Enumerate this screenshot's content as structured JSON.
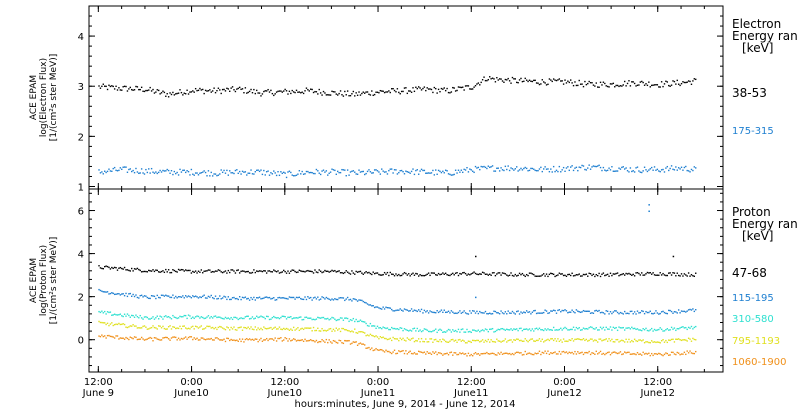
{
  "chart_data": [
    {
      "type": "scatter",
      "ylabel_lines": [
        "ACE EPAM",
        "log(Electron Flux)",
        "[1/(cm²s ster MeV)]"
      ],
      "ylim": [
        0.95,
        4.6
      ],
      "yticks": [
        1,
        2,
        3,
        4
      ],
      "legend_title_lines": [
        "Electron",
        "Energy ran",
        "[keV]"
      ],
      "series": [
        {
          "name": "38-53",
          "color": "#000000",
          "x": [
            0.0,
            0.12,
            0.25,
            0.37,
            0.5,
            0.62,
            0.75,
            0.87,
            1.0,
            1.12,
            1.25,
            1.37,
            1.5,
            1.62,
            1.75,
            1.87,
            2.0,
            2.08,
            2.12,
            2.25,
            2.37,
            2.5,
            2.62,
            2.75,
            2.87,
            3.0,
            3.12,
            3.2
          ],
          "y": [
            3.0,
            2.97,
            2.95,
            2.85,
            2.93,
            2.92,
            2.95,
            2.88,
            2.9,
            2.92,
            2.88,
            2.85,
            2.9,
            2.92,
            2.95,
            2.92,
            3.0,
            3.18,
            3.15,
            3.12,
            3.1,
            3.1,
            3.05,
            3.05,
            3.08,
            3.05,
            3.08,
            3.12
          ]
        },
        {
          "name": "175-315",
          "color": "#1e7fd0",
          "x": [
            0.0,
            0.12,
            0.25,
            0.37,
            0.5,
            0.62,
            0.75,
            0.87,
            1.0,
            1.12,
            1.25,
            1.37,
            1.5,
            1.62,
            1.75,
            1.87,
            2.0,
            2.12,
            2.25,
            2.37,
            2.5,
            2.62,
            2.75,
            2.87,
            3.0,
            3.12,
            3.2
          ],
          "y": [
            1.3,
            1.35,
            1.32,
            1.3,
            1.3,
            1.28,
            1.3,
            1.3,
            1.25,
            1.3,
            1.3,
            1.28,
            1.3,
            1.32,
            1.3,
            1.28,
            1.35,
            1.38,
            1.38,
            1.35,
            1.37,
            1.4,
            1.38,
            1.35,
            1.35,
            1.38,
            1.35
          ]
        }
      ]
    },
    {
      "type": "scatter",
      "ylabel_lines": [
        "ACE EPAM",
        "log(Proton Flux)",
        "[1/(cm²s ster MeV)]"
      ],
      "ylim": [
        -1.5,
        7.0
      ],
      "yticks": [
        0,
        2,
        4,
        6
      ],
      "legend_title_lines": [
        "Proton",
        "Energy ran",
        "[keV]"
      ],
      "series": [
        {
          "name": "47-68",
          "color": "#000000",
          "x": [
            0.0,
            0.25,
            0.5,
            0.75,
            1.0,
            1.25,
            1.5,
            1.75,
            2.0,
            2.25,
            2.5,
            2.75,
            3.0,
            3.2
          ],
          "y": [
            3.4,
            3.25,
            3.2,
            3.2,
            3.2,
            3.2,
            3.1,
            3.05,
            3.1,
            3.05,
            3.05,
            3.05,
            3.1,
            3.05
          ]
        },
        {
          "name": "115-195",
          "color": "#1e7fd0",
          "x": [
            0.0,
            0.25,
            0.5,
            0.75,
            1.0,
            1.25,
            1.37,
            1.5,
            1.75,
            2.0,
            2.25,
            2.5,
            2.75,
            3.0,
            3.2
          ],
          "y": [
            2.3,
            2.0,
            2.05,
            1.95,
            1.95,
            1.95,
            1.9,
            1.5,
            1.35,
            1.3,
            1.3,
            1.35,
            1.3,
            1.3,
            1.4
          ]
        },
        {
          "name": "310-580",
          "color": "#2ee0d0",
          "x": [
            0.0,
            0.25,
            0.5,
            0.75,
            1.0,
            1.25,
            1.37,
            1.5,
            1.75,
            2.0,
            2.25,
            2.5,
            2.75,
            3.0,
            3.2
          ],
          "y": [
            1.3,
            1.05,
            1.1,
            1.05,
            1.05,
            1.0,
            0.95,
            0.6,
            0.45,
            0.45,
            0.5,
            0.55,
            0.55,
            0.5,
            0.6
          ]
        },
        {
          "name": "795-1193",
          "color": "#e0e020",
          "x": [
            0.0,
            0.25,
            0.5,
            0.75,
            1.0,
            1.25,
            1.37,
            1.5,
            1.75,
            2.0,
            2.25,
            2.5,
            2.75,
            3.0,
            3.2
          ],
          "y": [
            0.8,
            0.6,
            0.6,
            0.55,
            0.55,
            0.5,
            0.45,
            0.1,
            0.0,
            -0.05,
            0.0,
            0.0,
            0.0,
            -0.05,
            0.05
          ]
        },
        {
          "name": "1060-1900",
          "color": "#f0901a",
          "x": [
            0.0,
            0.25,
            0.5,
            0.75,
            1.0,
            1.25,
            1.37,
            1.5,
            1.75,
            2.0,
            2.25,
            2.5,
            2.75,
            3.0,
            3.2
          ],
          "y": [
            0.2,
            0.05,
            0.1,
            0.0,
            0.05,
            -0.05,
            -0.1,
            -0.5,
            -0.6,
            -0.65,
            -0.6,
            -0.55,
            -0.6,
            -0.65,
            -0.55
          ]
        }
      ]
    }
  ],
  "x_axis": {
    "xlim": [
      -0.05,
      3.35
    ],
    "major_ticks": [
      {
        "x": 0.0,
        "top": "12:00",
        "bottom": "June 9"
      },
      {
        "x": 0.5,
        "top": "0:00",
        "bottom": "June10"
      },
      {
        "x": 1.0,
        "top": "12:00",
        "bottom": "June10"
      },
      {
        "x": 1.5,
        "top": "0:00",
        "bottom": "June11"
      },
      {
        "x": 2.0,
        "top": "12:00",
        "bottom": "June11"
      },
      {
        "x": 2.5,
        "top": "0:00",
        "bottom": "June12"
      },
      {
        "x": 3.0,
        "top": "12:00",
        "bottom": "June12"
      }
    ],
    "xlabel": "hours:minutes, June  9, 2014 - June 12, 2014"
  }
}
